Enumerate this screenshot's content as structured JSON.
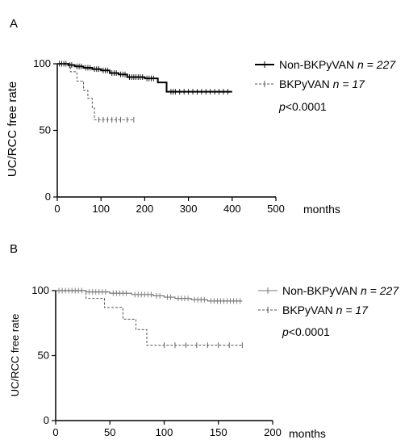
{
  "chart_data": [
    {
      "panel_label": "A",
      "type": "line",
      "xlabel": "months",
      "ylabel": "UC/RCC free rate",
      "xlim": [
        0,
        500
      ],
      "ylim": [
        0,
        100
      ],
      "xticks": [
        0,
        100,
        200,
        300,
        400,
        500
      ],
      "yticks": [
        0,
        50,
        100
      ],
      "legend_position": "right",
      "pvalue": "<0.0001",
      "series": [
        {
          "name": "Non-BKPyVAN",
          "n_label": "n = 227",
          "style": "solid",
          "steps": [
            [
              0,
              100
            ],
            [
              25,
              99
            ],
            [
              40,
              98
            ],
            [
              60,
              97
            ],
            [
              80,
              96
            ],
            [
              100,
              95
            ],
            [
              120,
              93
            ],
            [
              140,
              92
            ],
            [
              160,
              90
            ],
            [
              200,
              89
            ],
            [
              230,
              86
            ],
            [
              250,
              79
            ],
            [
              400,
              79
            ]
          ],
          "censor_x": [
            5,
            10,
            15,
            20,
            28,
            33,
            45,
            50,
            55,
            65,
            70,
            75,
            85,
            90,
            95,
            105,
            110,
            115,
            125,
            130,
            135,
            145,
            150,
            155,
            165,
            170,
            175,
            180,
            185,
            190,
            195,
            205,
            210,
            215,
            220,
            260,
            265,
            270,
            280,
            290,
            300,
            310,
            320,
            330,
            340,
            350,
            360,
            370,
            380,
            390
          ]
        },
        {
          "name": "BKPyVAN",
          "n_label": "n = 17",
          "style": "dashed",
          "steps": [
            [
              0,
              100
            ],
            [
              30,
              94
            ],
            [
              45,
              87
            ],
            [
              60,
              80
            ],
            [
              70,
              74
            ],
            [
              80,
              67
            ],
            [
              85,
              58
            ],
            [
              175,
              58
            ]
          ],
          "censor_x": [
            95,
            105,
            115,
            125,
            135,
            145,
            160,
            175
          ]
        }
      ]
    },
    {
      "panel_label": "B",
      "type": "line",
      "xlabel": "months",
      "ylabel": "UC/RCC free rate",
      "xlim": [
        0,
        200
      ],
      "ylim": [
        0,
        100
      ],
      "xticks": [
        0,
        50,
        100,
        150,
        200
      ],
      "yticks": [
        0,
        50,
        100
      ],
      "legend_position": "right",
      "pvalue": "<0.0001",
      "series": [
        {
          "name": "Non-BKPyVAN",
          "n_label": "n = 227",
          "style": "solid",
          "color": "#777777",
          "steps": [
            [
              0,
              100
            ],
            [
              28,
              99
            ],
            [
              50,
              98
            ],
            [
              70,
              97
            ],
            [
              90,
              96
            ],
            [
              100,
              95
            ],
            [
              110,
              94
            ],
            [
              125,
              93
            ],
            [
              140,
              92
            ],
            [
              172,
              92
            ]
          ],
          "censor_x": [
            3,
            6,
            9,
            12,
            15,
            18,
            21,
            24,
            31,
            34,
            37,
            40,
            43,
            46,
            53,
            56,
            59,
            62,
            65,
            73,
            76,
            79,
            82,
            85,
            88,
            93,
            96,
            103,
            106,
            113,
            116,
            119,
            122,
            128,
            131,
            134,
            137,
            143,
            146,
            149,
            152,
            155,
            158,
            161,
            164,
            167,
            170
          ]
        },
        {
          "name": "BKPyVAN",
          "n_label": "n = 17",
          "style": "dashed",
          "color": "#555555",
          "steps": [
            [
              0,
              100
            ],
            [
              28,
              94
            ],
            [
              45,
              87
            ],
            [
              62,
              78
            ],
            [
              74,
              70
            ],
            [
              84,
              58
            ],
            [
              172,
              58
            ]
          ],
          "censor_x": [
            100,
            110,
            120,
            130,
            140,
            150,
            160,
            172
          ]
        }
      ]
    }
  ]
}
